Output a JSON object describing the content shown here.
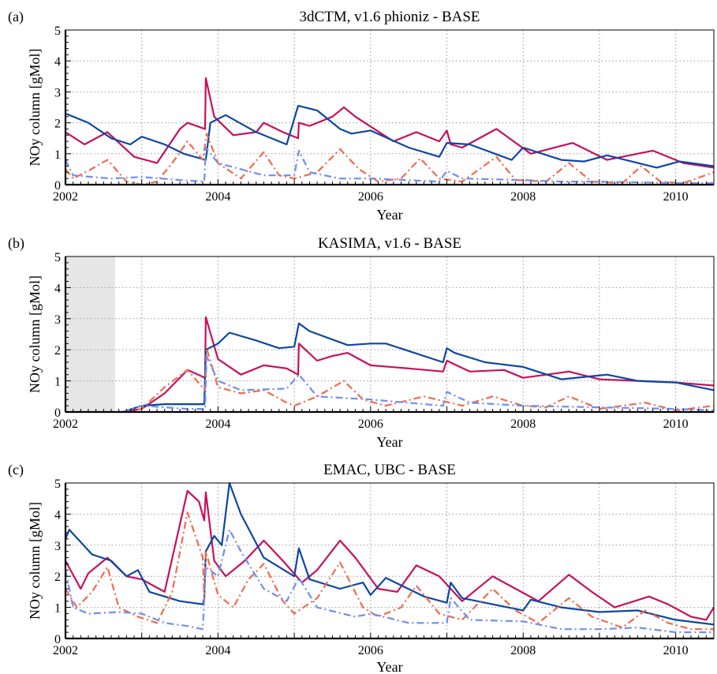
{
  "chart_data": [
    {
      "panel_label": "(a)",
      "title": "3dCTM, v1.6 phioniz - BASE",
      "type": "line",
      "xlabel": "Year",
      "ylabel": "NOy column [gMol]",
      "xlim": [
        2002,
        2010.5
      ],
      "ylim": [
        0,
        5
      ],
      "xticks": [
        2002,
        2004,
        2006,
        2008,
        2010
      ],
      "yticks": [
        0,
        1,
        2,
        3,
        4,
        5
      ],
      "grid": true,
      "shaded_region": null,
      "series": [
        {
          "color": "#c8105a",
          "style": "solid",
          "x": [
            2002,
            2002.25,
            2002.55,
            2002.9,
            2003.2,
            2003.5,
            2003.6,
            2003.83,
            2003.84,
            2003.95,
            2004.2,
            2004.5,
            2004.6,
            2004.85,
            2005.05,
            2005.06,
            2005.2,
            2005.5,
            2005.65,
            2005.8,
            2006.3,
            2006.6,
            2006.9,
            2007.0,
            2007.05,
            2007.2,
            2007.65,
            2008.1,
            2008.65,
            2009.1,
            2009.7,
            2010.1,
            2010.5
          ],
          "y": [
            1.7,
            1.3,
            1.7,
            0.9,
            0.7,
            1.8,
            2.0,
            1.8,
            3.45,
            2.2,
            1.6,
            1.7,
            2.0,
            1.7,
            1.5,
            2.0,
            1.9,
            2.2,
            2.5,
            2.2,
            1.4,
            1.7,
            1.4,
            1.75,
            1.3,
            1.2,
            1.8,
            1.0,
            1.35,
            0.8,
            1.1,
            0.7,
            0.55
          ]
        },
        {
          "color": "#0d47a1",
          "style": "solid",
          "x": [
            2002,
            2002.3,
            2002.6,
            2002.85,
            2003.0,
            2003.3,
            2003.55,
            2003.84,
            2003.9,
            2004.1,
            2004.5,
            2004.9,
            2005.05,
            2005.3,
            2005.6,
            2005.75,
            2006.0,
            2006.5,
            2006.9,
            2007.0,
            2007.3,
            2007.85,
            2008.0,
            2008.5,
            2008.8,
            2009.1,
            2009.75,
            2010.05,
            2010.5
          ],
          "y": [
            2.3,
            2.0,
            1.5,
            1.3,
            1.55,
            1.3,
            1.0,
            0.8,
            2.0,
            2.25,
            1.7,
            1.3,
            2.55,
            2.4,
            1.8,
            1.65,
            1.75,
            1.2,
            0.9,
            1.35,
            1.3,
            0.8,
            1.2,
            0.8,
            0.75,
            0.95,
            0.55,
            0.75,
            0.6
          ]
        },
        {
          "color": "#f26a4b",
          "style": "dashdot",
          "x": [
            2002,
            2002.1,
            2002.3,
            2002.55,
            2002.8,
            2003.0,
            2003.2,
            2003.4,
            2003.6,
            2003.8,
            2003.85,
            2004.0,
            2004.3,
            2004.6,
            2004.8,
            2005.0,
            2005.3,
            2005.6,
            2005.85,
            2006.1,
            2006.4,
            2006.65,
            2006.9,
            2007.2,
            2007.65,
            2007.9,
            2008.3,
            2008.6,
            2008.9,
            2009.3,
            2009.55,
            2009.8,
            2010.1,
            2010.5
          ],
          "y": [
            0.5,
            0.2,
            0.45,
            0.8,
            0.1,
            0.0,
            0.1,
            0.7,
            1.4,
            0.8,
            1.65,
            0.7,
            0.2,
            1.05,
            0.3,
            0.2,
            0.4,
            1.15,
            0.5,
            0.1,
            0.2,
            0.85,
            0.2,
            0.1,
            0.9,
            0.15,
            0.1,
            0.7,
            0.1,
            0.05,
            0.6,
            0.1,
            0.05,
            0.4
          ]
        },
        {
          "color": "#6f8ef2",
          "style": "dashdot",
          "x": [
            2002,
            2002.1,
            2002.6,
            2003.0,
            2003.5,
            2003.82,
            2003.84,
            2004.0,
            2004.6,
            2005.0,
            2005.06,
            2005.2,
            2005.6,
            2006.0,
            2006.9,
            2007.0,
            2007.2,
            2008.0,
            2008.5,
            2009.0,
            2010.0,
            2010.5
          ],
          "y": [
            0.8,
            0.3,
            0.2,
            0.25,
            0.15,
            0.1,
            1.2,
            0.7,
            0.3,
            0.3,
            1.1,
            0.4,
            0.2,
            0.2,
            0.1,
            0.45,
            0.2,
            0.15,
            0.1,
            0.1,
            0.05,
            0.05
          ]
        }
      ]
    },
    {
      "panel_label": "(b)",
      "title": "KASIMA, v1.6 - BASE",
      "type": "line",
      "xlabel": "Year",
      "ylabel": "NOy column [gMol]",
      "xlim": [
        2002,
        2010.5
      ],
      "ylim": [
        0,
        5
      ],
      "xticks": [
        2002,
        2004,
        2006,
        2008,
        2010
      ],
      "yticks": [
        0,
        1,
        2,
        3,
        4,
        5
      ],
      "grid": true,
      "shaded_region": [
        2002,
        2002.65
      ],
      "series": [
        {
          "color": "#c8105a",
          "style": "solid",
          "x": [
            2002.75,
            2003.0,
            2003.3,
            2003.6,
            2003.83,
            2003.84,
            2004.0,
            2004.3,
            2004.6,
            2004.9,
            2005.05,
            2005.06,
            2005.3,
            2005.5,
            2005.7,
            2006.0,
            2006.5,
            2006.95,
            2007.0,
            2007.3,
            2007.75,
            2008.0,
            2008.6,
            2009.0,
            2009.5,
            2010.0,
            2010.5
          ],
          "y": [
            0.0,
            0.1,
            0.6,
            1.35,
            1.1,
            3.05,
            1.7,
            1.2,
            1.5,
            1.4,
            1.2,
            2.2,
            1.65,
            1.8,
            1.9,
            1.5,
            1.4,
            1.3,
            1.65,
            1.3,
            1.35,
            1.1,
            1.3,
            1.05,
            1.0,
            0.95,
            0.85
          ]
        },
        {
          "color": "#0d47a1",
          "style": "solid",
          "x": [
            2002.75,
            2003.0,
            2003.3,
            2003.6,
            2003.82,
            2003.84,
            2004.0,
            2004.15,
            2004.5,
            2004.8,
            2005.0,
            2005.06,
            2005.2,
            2005.7,
            2006.0,
            2006.2,
            2006.95,
            2007.0,
            2007.1,
            2007.5,
            2008.0,
            2008.5,
            2009.1,
            2009.5,
            2010.0,
            2010.5
          ],
          "y": [
            0.0,
            0.2,
            0.25,
            0.25,
            0.25,
            2.0,
            2.2,
            2.55,
            2.3,
            2.05,
            2.1,
            2.85,
            2.6,
            2.15,
            2.2,
            2.2,
            1.6,
            2.05,
            1.9,
            1.6,
            1.45,
            1.05,
            1.2,
            1.0,
            0.95,
            0.7
          ]
        },
        {
          "color": "#f26a4b",
          "style": "dashdot",
          "x": [
            2002.75,
            2003.0,
            2003.3,
            2003.6,
            2003.83,
            2003.85,
            2004.0,
            2004.3,
            2004.6,
            2004.9,
            2005.0,
            2005.3,
            2005.65,
            2005.9,
            2006.2,
            2006.7,
            2007.2,
            2007.6,
            2008.0,
            2008.3,
            2008.6,
            2009.0,
            2009.6,
            2010.0,
            2010.5
          ],
          "y": [
            0.0,
            0.1,
            0.8,
            1.35,
            0.7,
            2.05,
            0.8,
            0.6,
            0.7,
            0.3,
            0.2,
            0.5,
            1.0,
            0.4,
            0.2,
            0.5,
            0.2,
            0.5,
            0.2,
            0.15,
            0.5,
            0.1,
            0.3,
            0.05,
            0.2
          ]
        },
        {
          "color": "#6f8ef2",
          "style": "dashdot",
          "x": [
            2002.75,
            2003.0,
            2003.3,
            2003.6,
            2003.83,
            2003.85,
            2004.0,
            2004.3,
            2004.9,
            2005.06,
            2005.3,
            2006.0,
            2006.95,
            2007.0,
            2007.3,
            2008.0,
            2009.0,
            2010.0,
            2010.5
          ],
          "y": [
            0.0,
            0.2,
            0.15,
            0.1,
            0.1,
            1.8,
            1.0,
            0.7,
            0.75,
            1.2,
            0.5,
            0.4,
            0.2,
            0.65,
            0.3,
            0.2,
            0.15,
            0.1,
            0.05
          ]
        }
      ]
    },
    {
      "panel_label": "(c)",
      "title": "EMAC, UBC - BASE",
      "type": "line",
      "xlabel": "Year",
      "ylabel": "NOy column [gMol]",
      "xlim": [
        2002,
        2010.5
      ],
      "ylim": [
        0,
        5
      ],
      "xticks": [
        2002,
        2004,
        2006,
        2008,
        2010
      ],
      "yticks": [
        0,
        1,
        2,
        3,
        4,
        5
      ],
      "grid": true,
      "shaded_region": null,
      "series": [
        {
          "color": "#c8105a",
          "style": "solid",
          "x": [
            2002,
            2002.2,
            2002.3,
            2002.55,
            2002.8,
            2003.0,
            2003.3,
            2003.6,
            2003.75,
            2003.82,
            2003.84,
            2003.95,
            2004.1,
            2004.35,
            2004.6,
            2004.85,
            2005.1,
            2005.3,
            2005.6,
            2005.8,
            2006.1,
            2006.35,
            2006.6,
            2006.9,
            2007.2,
            2007.6,
            2007.9,
            2008.2,
            2008.6,
            2008.9,
            2009.2,
            2009.65,
            2009.9,
            2010.2,
            2010.4,
            2010.5
          ],
          "y": [
            2.5,
            1.6,
            2.1,
            2.6,
            2.0,
            1.9,
            1.5,
            4.75,
            4.4,
            3.8,
            4.7,
            2.5,
            2.0,
            2.5,
            3.15,
            2.5,
            1.8,
            2.2,
            3.15,
            2.6,
            1.6,
            1.5,
            2.35,
            2.0,
            1.2,
            2.0,
            1.6,
            1.2,
            2.05,
            1.5,
            1.0,
            1.35,
            1.1,
            0.7,
            0.6,
            1.0
          ]
        },
        {
          "color": "#0d47a1",
          "style": "solid",
          "x": [
            2002,
            2002.05,
            2002.35,
            2002.6,
            2002.8,
            2002.95,
            2003.1,
            2003.5,
            2003.8,
            2003.82,
            2003.84,
            2003.95,
            2004.05,
            2004.15,
            2004.3,
            2004.6,
            2005.0,
            2005.06,
            2005.2,
            2005.6,
            2005.9,
            2006.0,
            2006.2,
            2006.7,
            2007.0,
            2007.05,
            2007.2,
            2008.0,
            2008.1,
            2008.5,
            2009.0,
            2009.5,
            2010.0,
            2010.5
          ],
          "y": [
            3.2,
            3.5,
            2.7,
            2.5,
            2.0,
            2.2,
            1.5,
            1.2,
            1.1,
            1.3,
            2.8,
            3.3,
            3.0,
            5.0,
            4.0,
            2.6,
            2.0,
            2.9,
            1.9,
            1.6,
            1.8,
            1.4,
            1.95,
            1.35,
            1.15,
            1.8,
            1.3,
            0.9,
            1.25,
            1.0,
            0.85,
            0.9,
            0.6,
            0.45
          ]
        },
        {
          "color": "#f26a4b",
          "style": "dashdot",
          "x": [
            2002,
            2002.15,
            2002.35,
            2002.55,
            2002.7,
            2002.95,
            2003.2,
            2003.4,
            2003.6,
            2003.8,
            2003.82,
            2003.84,
            2004.0,
            2004.2,
            2004.4,
            2004.6,
            2004.85,
            2005.0,
            2005.3,
            2005.6,
            2005.9,
            2006.1,
            2006.4,
            2006.6,
            2006.9,
            2007.2,
            2007.6,
            2007.9,
            2008.2,
            2008.6,
            2008.9,
            2009.3,
            2009.6,
            2009.9,
            2010.2,
            2010.5
          ],
          "y": [
            1.6,
            1.0,
            1.5,
            2.3,
            1.0,
            0.7,
            0.5,
            1.5,
            4.05,
            2.6,
            1.2,
            2.8,
            1.4,
            1.0,
            1.9,
            2.4,
            1.2,
            0.8,
            1.3,
            2.45,
            1.0,
            0.7,
            1.0,
            1.7,
            0.8,
            0.6,
            1.6,
            0.9,
            0.5,
            1.3,
            0.7,
            0.35,
            0.9,
            0.5,
            0.3,
            0.3
          ]
        },
        {
          "color": "#6f8ef2",
          "style": "dashdot",
          "x": [
            2002,
            2002.1,
            2002.3,
            2002.7,
            2003.0,
            2003.3,
            2003.6,
            2003.8,
            2003.84,
            2004.0,
            2004.15,
            2004.3,
            2004.6,
            2004.9,
            2005.06,
            2005.3,
            2005.8,
            2006.0,
            2006.5,
            2007.0,
            2007.05,
            2007.3,
            2008.0,
            2008.5,
            2009.0,
            2009.5,
            2010.0,
            2010.5
          ],
          "y": [
            2.2,
            1.0,
            0.8,
            0.85,
            0.8,
            0.5,
            0.4,
            0.3,
            2.3,
            2.0,
            3.5,
            2.8,
            1.6,
            1.2,
            1.95,
            1.0,
            0.7,
            0.8,
            0.5,
            0.5,
            1.3,
            0.6,
            0.55,
            0.3,
            0.3,
            0.35,
            0.2,
            0.2
          ]
        }
      ]
    }
  ]
}
